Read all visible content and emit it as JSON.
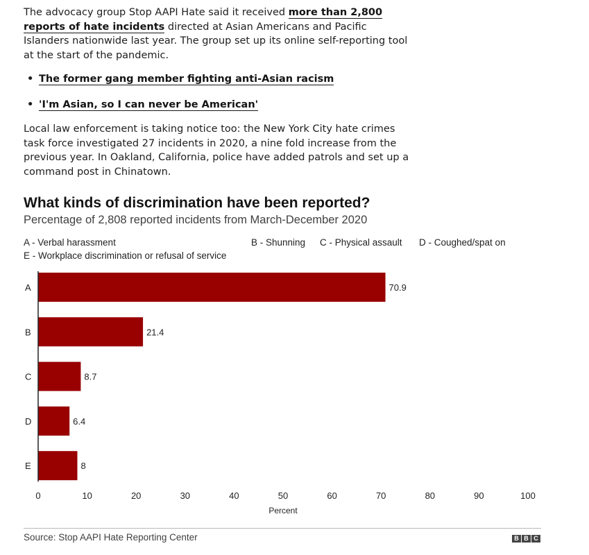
{
  "article": {
    "p1_before": "The advocacy group Stop AAPI Hate said it received ",
    "p1_link": "more than 2,800 reports of hate incidents",
    "p1_after": " directed at Asian Americans and Pacific Islanders nationwide last year. The group set up its online self-reporting tool at the start of the pandemic.",
    "bullets": [
      "The former gang member fighting anti-Asian racism",
      "'I'm Asian, so I can never be American'"
    ],
    "p2": "Local law enforcement is taking notice too: the New York City hate crimes task force investigated 27 incidents in 2020, a nine fold increase from the previous year. In Oakland, California, police have added patrols and set up a command post in Chinatown."
  },
  "chart_data": {
    "type": "bar",
    "orientation": "horizontal",
    "title": "What kinds of discrimination have been reported?",
    "subtitle": "Percentage of 2,808 reported incidents from March-December 2020",
    "legend": [
      "A - Verbal harassment",
      "B - Shunning",
      "C - Physical assault",
      "D - Coughed/spat on",
      "E - Workplace discrimination or refusal of service"
    ],
    "categories": [
      "A",
      "B",
      "C",
      "D",
      "E"
    ],
    "values": [
      70.9,
      21.4,
      8.7,
      6.4,
      8
    ],
    "value_labels": [
      "70.9",
      "21.4",
      "8.7",
      "6.4",
      "8"
    ],
    "xlim": [
      0,
      100
    ],
    "xticks": [
      0,
      10,
      20,
      30,
      40,
      50,
      60,
      70,
      80,
      90,
      100
    ],
    "xlabel": "Percent",
    "bar_color": "#990000",
    "grid": false
  },
  "footer": {
    "source": "Source: Stop AAPI Hate Reporting Center",
    "logo_letters": [
      "B",
      "B",
      "C"
    ]
  }
}
